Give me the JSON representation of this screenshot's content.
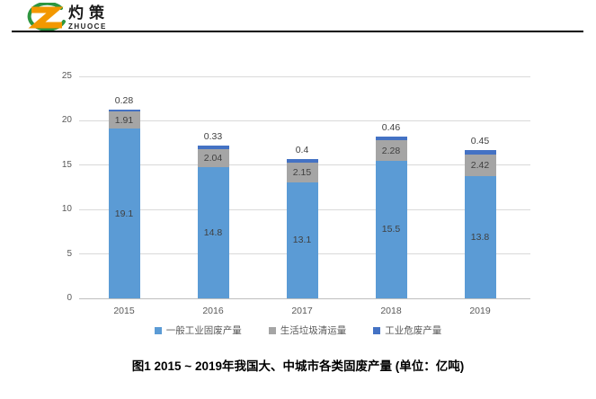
{
  "logo": {
    "name_cn": "灼策",
    "name_en": "ZHUOCE",
    "colors": {
      "orange": "#F39800",
      "green": "#2E9640"
    }
  },
  "chart_data": {
    "type": "bar",
    "stacked": true,
    "categories": [
      "2015",
      "2016",
      "2017",
      "2018",
      "2019"
    ],
    "series": [
      {
        "name": "一般工业固废产量",
        "color": "#5B9BD5",
        "values": [
          19.1,
          14.8,
          13.1,
          15.5,
          13.8
        ],
        "labels": [
          "19.1",
          "14.8",
          "13.1",
          "15.5",
          "13.8"
        ],
        "label_placement": "inside"
      },
      {
        "name": "生活垃圾清运量",
        "color": "#A5A5A5",
        "values": [
          1.91,
          2.04,
          2.15,
          2.28,
          2.42
        ],
        "labels": [
          "1.91",
          "2.04",
          "2.15",
          "2.28",
          "2.42"
        ],
        "label_placement": "inside"
      },
      {
        "name": "工业危废产量",
        "color": "#4472C4",
        "values": [
          0.28,
          0.33,
          0.4,
          0.46,
          0.45
        ],
        "labels": [
          "0.28",
          "0.33",
          "0.4",
          "0.46",
          "0.45"
        ],
        "label_placement": "above"
      }
    ],
    "ylim": [
      0,
      25
    ],
    "y_ticks": [
      0,
      5,
      10,
      15,
      20,
      25
    ],
    "grid": true,
    "legend_position": "bottom",
    "colors": {
      "gridline": "#D9D9D9",
      "axis_line": "#BFBFBF",
      "tick_label": "#595959",
      "data_label": "#404040"
    }
  },
  "caption": "图1  2015 ~ 2019年我国大、中城市各类固废产量 (单位：亿吨)"
}
